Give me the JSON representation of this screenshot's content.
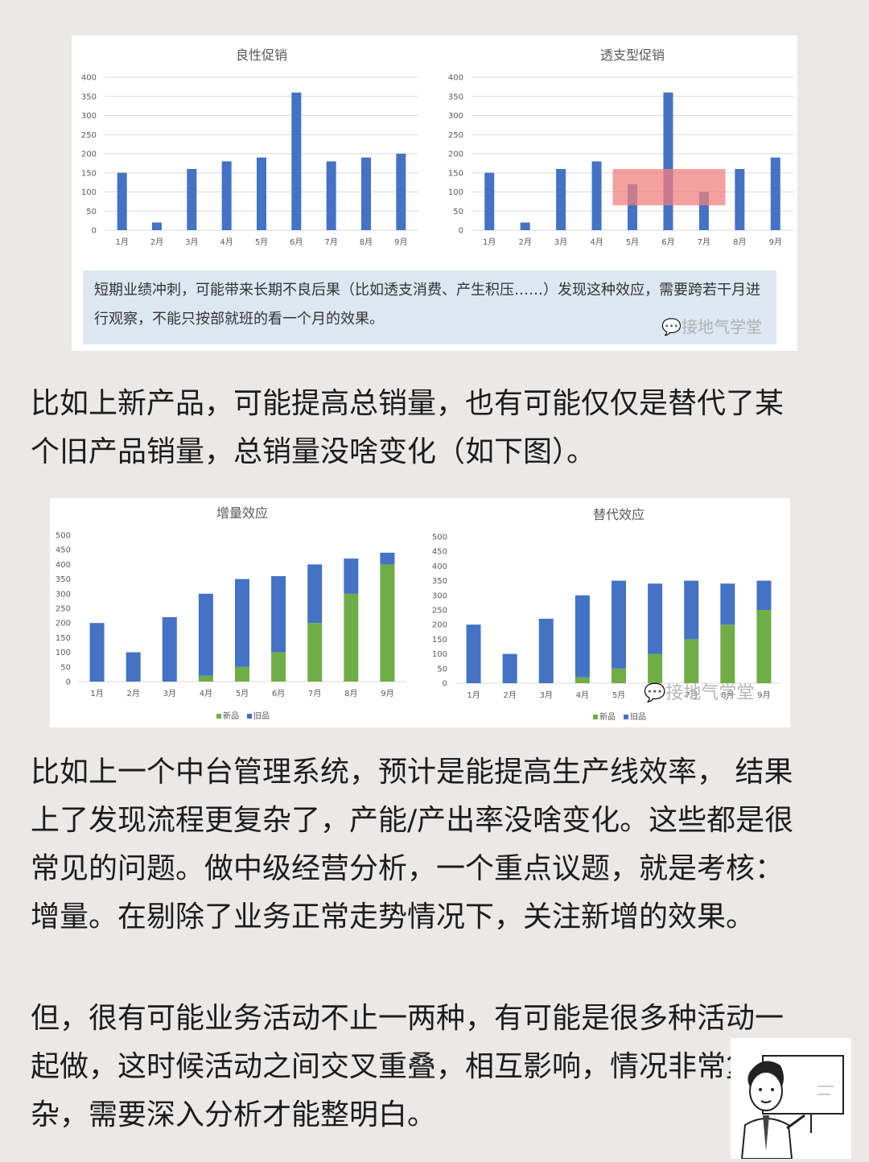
{
  "top_caption": {
    "text": "短期业绩冲刺，可能带来长期不良后果（比如透支消费、产生积压……）发现这种效应，需要跨若干月进行观察，不能只按部就班的看一个月的效果。",
    "watermark": "接地气学堂"
  },
  "paragraph1": "比如上新产品，可能提高总销量，也有可能仅仅是替代了某\n个旧产品销量，总销量没啥变化（如下图）。",
  "paragraph2": "比如上一个中台管理系统，预计是能提高生产线效率， 结果\n上了发现流程更复杂了，产能/产出率没啥变化。这些都是很\n常见的问题。做中级经营分析，一个重点议题，就是考核：\n增量。在剔除了业务正常走势情况下，关注新增的效果。",
  "paragraph3": "但，很有可能业务活动不止一两种，有可能是很多种活动一\n起做，这时候活动之间交叉重叠，相互影响，情况非常复\n杂，需要深入分析才能整明白。",
  "watermark2": "接地气学堂",
  "colors": {
    "blue": "#4472c4",
    "green": "#70ad47",
    "highlight": "#f08080"
  },
  "chart_data": [
    {
      "type": "bar",
      "title": "良性促销",
      "categories": [
        "1月",
        "2月",
        "3月",
        "4月",
        "5月",
        "6月",
        "7月",
        "8月",
        "9月"
      ],
      "values": [
        150,
        20,
        160,
        180,
        190,
        360,
        180,
        190,
        200
      ],
      "ylim": [
        0,
        400
      ],
      "yticks": [
        0,
        50,
        100,
        150,
        200,
        250,
        300,
        350,
        400
      ],
      "grid": true
    },
    {
      "type": "bar",
      "title": "透支型促销",
      "categories": [
        "1月",
        "2月",
        "3月",
        "4月",
        "5月",
        "6月",
        "7月",
        "8月",
        "9月"
      ],
      "values": [
        150,
        20,
        160,
        180,
        120,
        360,
        100,
        160,
        190
      ],
      "ylim": [
        0,
        400
      ],
      "yticks": [
        0,
        50,
        100,
        150,
        200,
        250,
        300,
        350,
        400
      ],
      "grid": true,
      "highlight": {
        "from_category": "5月",
        "to_category": "7月",
        "y_range": [
          65,
          160
        ]
      }
    },
    {
      "type": "bar",
      "stacked": true,
      "title": "增量效应",
      "categories": [
        "1月",
        "2月",
        "3月",
        "4月",
        "5月",
        "6月",
        "7月",
        "8月",
        "9月"
      ],
      "series": [
        {
          "name": "新品",
          "values": [
            0,
            0,
            0,
            20,
            50,
            100,
            200,
            300,
            400
          ]
        },
        {
          "name": "旧品",
          "values": [
            200,
            100,
            220,
            280,
            300,
            260,
            200,
            120,
            40
          ]
        }
      ],
      "ylim": [
        0,
        500
      ],
      "yticks": [
        0,
        50,
        100,
        150,
        200,
        250,
        300,
        350,
        400,
        450,
        500
      ],
      "legend": "bottom"
    },
    {
      "type": "bar",
      "stacked": true,
      "title": "替代效应",
      "categories": [
        "1月",
        "2月",
        "3月",
        "4月",
        "5月",
        "6月",
        "7月",
        "8月",
        "9月"
      ],
      "series": [
        {
          "name": "新品",
          "values": [
            0,
            0,
            0,
            20,
            50,
            100,
            150,
            200,
            250
          ]
        },
        {
          "name": "旧品",
          "values": [
            200,
            100,
            220,
            280,
            300,
            240,
            200,
            140,
            100
          ]
        }
      ],
      "ylim": [
        0,
        500
      ],
      "yticks": [
        0,
        50,
        100,
        150,
        200,
        250,
        300,
        350,
        400,
        450,
        500
      ],
      "legend": "bottom"
    }
  ]
}
